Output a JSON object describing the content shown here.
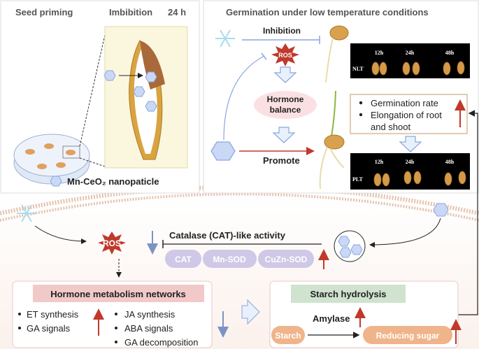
{
  "left_panel": {
    "title_left": "Seed priming",
    "title_mid": "Imbibition",
    "title_time": "24 h",
    "legend": "Mn-CeO₂ nanopaticle"
  },
  "right_panel": {
    "title": "Germination under low temperature conditions",
    "inhibition": "Inhibition",
    "ros": "ROS",
    "hormone_balance": [
      "Hormone",
      "balance"
    ],
    "promote": "Promote",
    "nlt_label": "NLT",
    "plt_label": "PLT",
    "times": [
      "12h",
      "24h",
      "48h"
    ],
    "results": [
      "Germination rate",
      "Elongation of root",
      "and shoot"
    ]
  },
  "bottom": {
    "ros": "ROS",
    "catalase": "Catalase (CAT)-like activity",
    "enzymes": [
      "CAT",
      "Mn-SOD",
      "CuZn-SOD"
    ],
    "hormone_box": {
      "title": "Hormone metabolism networks",
      "up_items": [
        "ET synthesis",
        "GA signals"
      ],
      "down_items": [
        "JA synthesis",
        "ABA signals",
        "GA decomposition"
      ]
    },
    "starch_box": {
      "title": "Starch hydrolysis",
      "enzyme": "Amylase",
      "substrate": "Starch",
      "product": "Reducing sugar"
    }
  },
  "colors": {
    "up_arrow": "#c0392b",
    "down_arrow": "#7b93c4",
    "enzyme_pill": "#cfc8e6",
    "hormone_title_bg": "#f2c9c9",
    "starch_title_bg": "#cfe3cf",
    "starch_pill": "#f0b48a"
  }
}
